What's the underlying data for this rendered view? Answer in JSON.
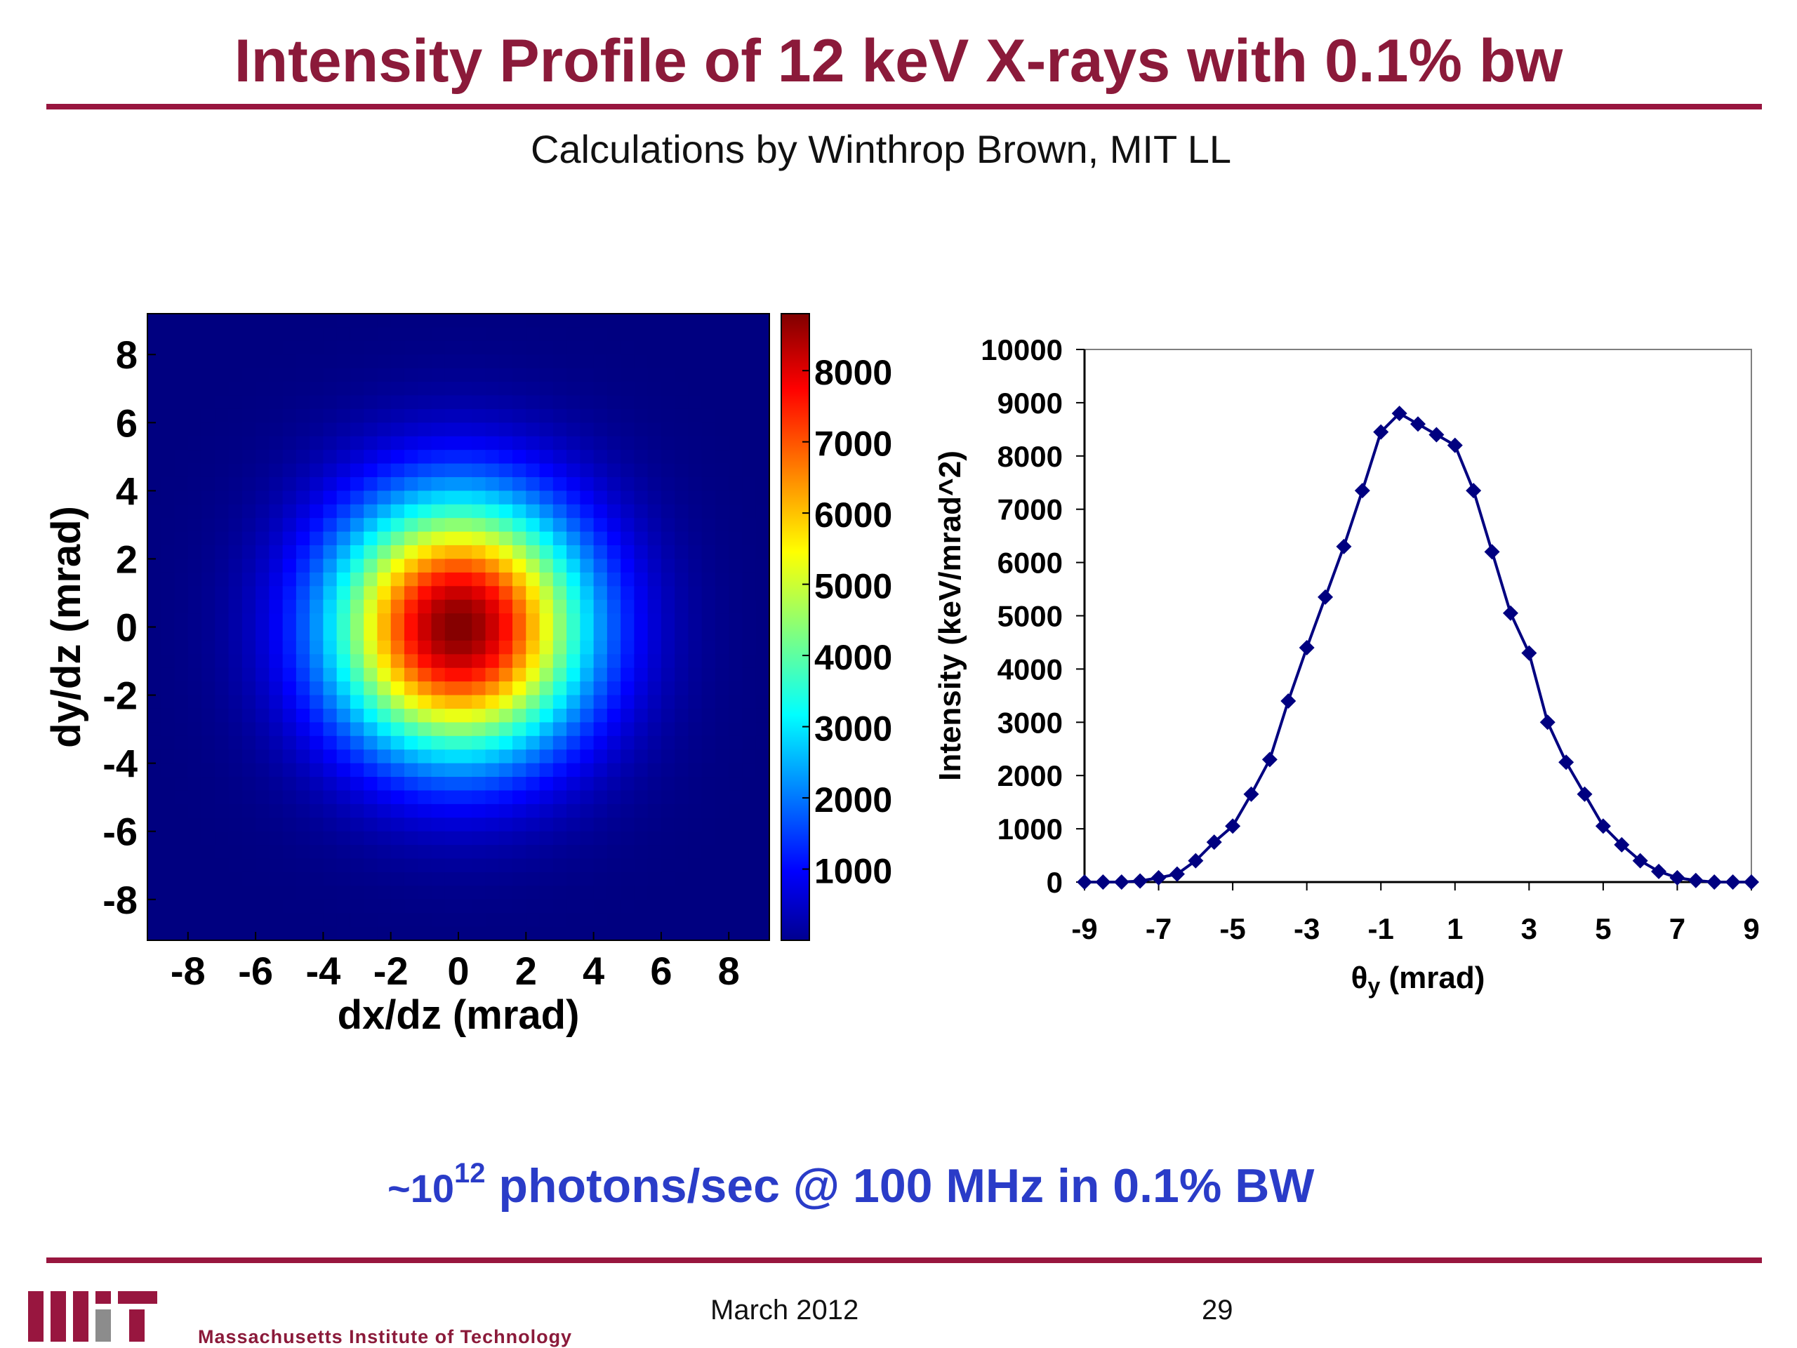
{
  "slide": {
    "title": "Intensity Profile of 12 keV X-rays with 0.1% bw",
    "subtitle": "Calculations by Winthrop Brown, MIT LL",
    "footnote_prefix": "~10",
    "footnote_exponent": "12",
    "footnote_text": "photons/sec @ 100 MHz in 0.1% BW",
    "footer_date": "March 2012",
    "footer_page": "29",
    "institution": "Massachusetts Institute of Technology",
    "accent_color": "#98163f",
    "footnote_color": "#2a3cc8",
    "logo_icon": "mit-logo-icon"
  },
  "chart_data": [
    {
      "type": "heatmap",
      "title": "",
      "xlabel": "dx/dz (mrad)",
      "ylabel": "dy/dz (mrad)",
      "xlim": [
        -9.2,
        9.2
      ],
      "ylim": [
        -9.2,
        9.2
      ],
      "x_ticks": [
        -8,
        -6,
        -4,
        -2,
        0,
        2,
        4,
        6,
        8
      ],
      "y_ticks": [
        8,
        6,
        4,
        2,
        0,
        -2,
        -4,
        -6,
        -8
      ],
      "colormap": "jet",
      "colorbar": {
        "min": 0,
        "max": 8800,
        "ticks": [
          8000,
          7000,
          6000,
          5000,
          4000,
          3000,
          2000,
          1000
        ]
      },
      "grid_cells": 46,
      "peak_value": 8800,
      "peak_location": [
        0.0,
        0.0
      ],
      "gaussian_sigma_mrad": [
        2.6,
        2.6
      ]
    },
    {
      "type": "line",
      "title": "",
      "xlabel": "θy (mrad)",
      "xlabel_symbol": "θ",
      "xlabel_sub": "y",
      "xlabel_unit": " (mrad)",
      "ylabel": "Intensity (keV/mrad^2)",
      "xlim": [
        -9,
        9
      ],
      "ylim": [
        0,
        10000
      ],
      "x_ticks": [
        -9,
        -7,
        -5,
        -3,
        -1,
        1,
        3,
        5,
        7,
        9
      ],
      "y_ticks": [
        10000,
        9000,
        8000,
        7000,
        6000,
        5000,
        4000,
        3000,
        2000,
        1000,
        0
      ],
      "grid": false,
      "marker": "diamond",
      "color": "#000080",
      "x": [
        -9,
        -8.5,
        -8,
        -7.5,
        -7,
        -6.5,
        -6,
        -5.5,
        -5,
        -4.5,
        -4,
        -3.5,
        -3,
        -2.5,
        -2,
        -1.5,
        -1,
        -0.5,
        0,
        0.5,
        1,
        1.5,
        2,
        2.5,
        3,
        3.5,
        4,
        4.5,
        5,
        5.5,
        6,
        6.5,
        7,
        7.5,
        8,
        8.5,
        9
      ],
      "y": [
        0,
        0,
        0,
        20,
        80,
        150,
        400,
        750,
        1050,
        1650,
        2300,
        3400,
        4400,
        5350,
        6300,
        7350,
        8450,
        8800,
        8600,
        8400,
        8200,
        7350,
        6200,
        5050,
        4300,
        3000,
        2250,
        1650,
        1050,
        700,
        400,
        200,
        80,
        30,
        0,
        0,
        0
      ]
    }
  ]
}
